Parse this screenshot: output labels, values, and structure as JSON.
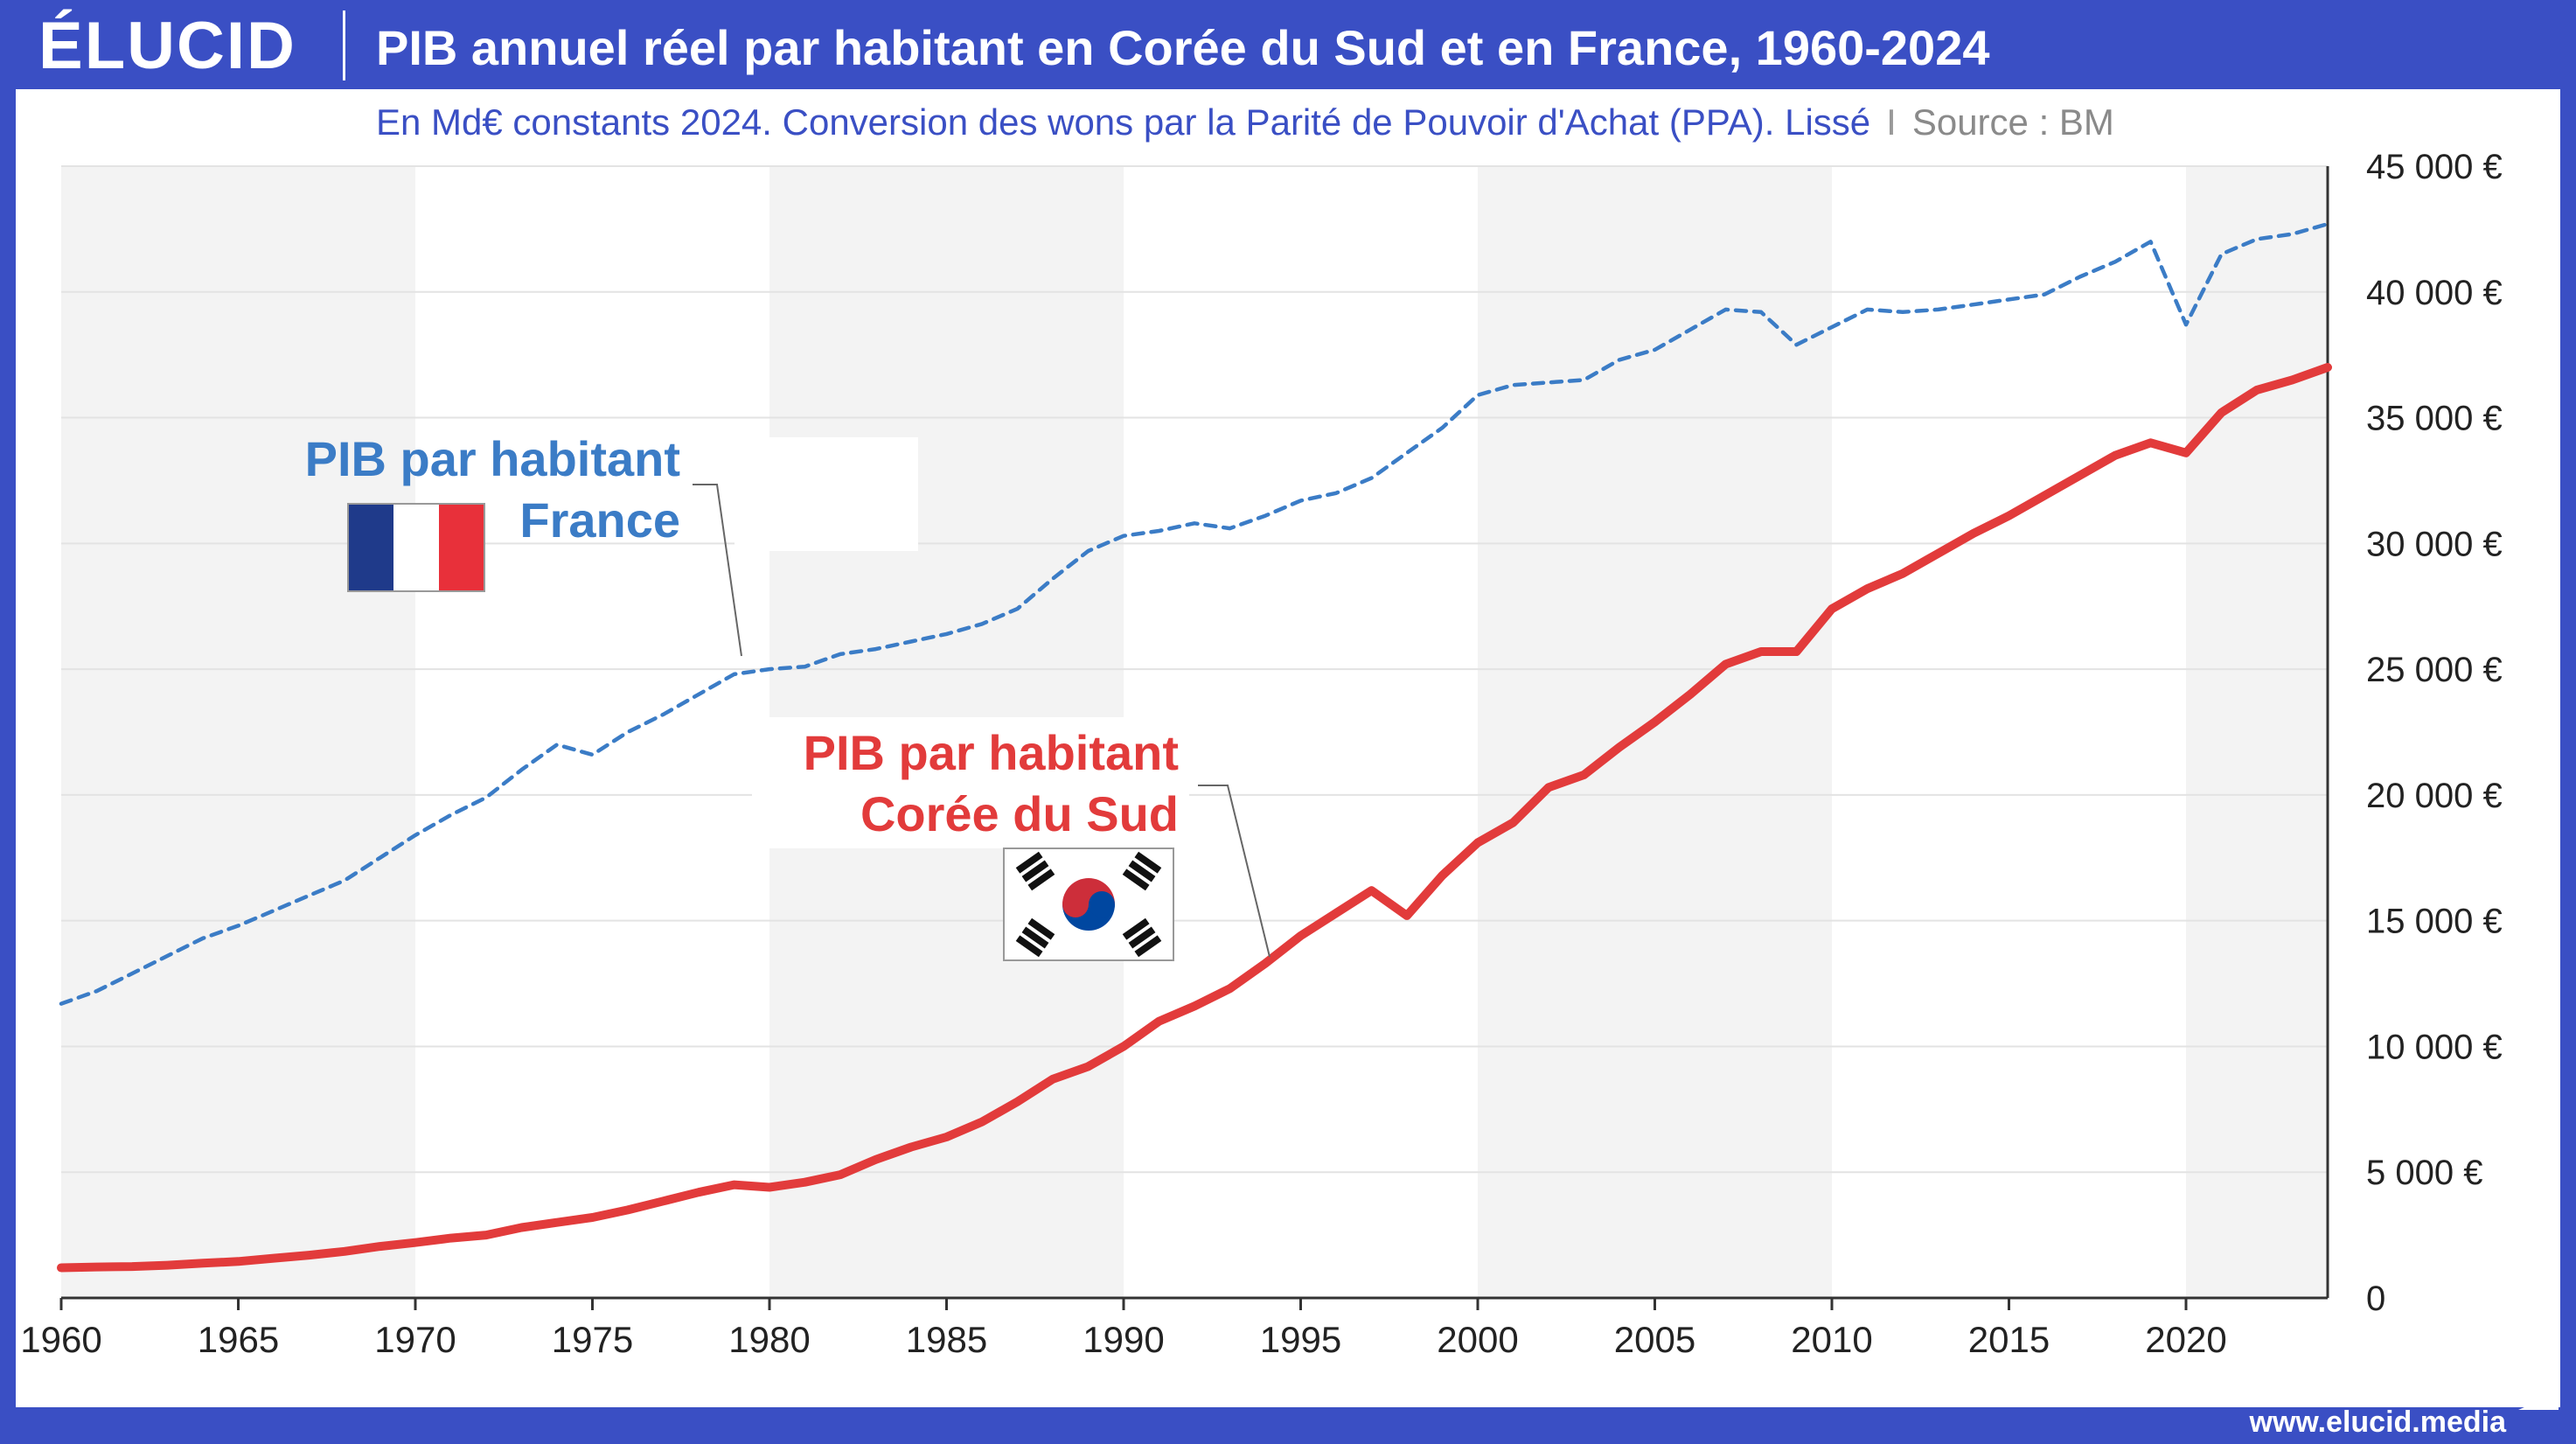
{
  "header": {
    "logo": "ÉLUCID",
    "title": "PIB annuel réel par habitant en Corée du Sud et en France, 1960-2024"
  },
  "subtitle": {
    "text": "En Md€ constants 2024. Conversion des wons par la Parité de Pouvoir d'Achat (PPA). Lissé",
    "separator": "I",
    "source": "Source : BM"
  },
  "footer": {
    "url": "www.elucid.media"
  },
  "colors": {
    "background": "#3a4fc4",
    "france": "#3b7cc6",
    "korea": "#e23b3b",
    "band": "#f3f3f3",
    "grid": "#e3e3e3"
  },
  "annotations": {
    "france": {
      "line1": "PIB par habitant",
      "line2": "France",
      "flag": "flag-france"
    },
    "korea": {
      "line1": "PIB par habitant",
      "line2": "Corée du Sud",
      "flag": "flag-south-korea"
    }
  },
  "chart_data": {
    "type": "line",
    "title": "PIB annuel réel par habitant en Corée du Sud et en France, 1960-2024",
    "xlim": [
      1960,
      2024
    ],
    "ylim": [
      0,
      45000
    ],
    "x_ticks": [
      "1960",
      "1965",
      "1970",
      "1975",
      "1980",
      "1985",
      "1990",
      "1995",
      "2000",
      "2005",
      "2010",
      "2015",
      "2020"
    ],
    "y_ticks": [
      "0",
      "5 000 €",
      "10 000 €",
      "15 000 €",
      "20 000 €",
      "25 000 €",
      "30 000 €",
      "35 000 €",
      "40 000 €",
      "45 000 €"
    ],
    "grid": true,
    "shaded_decades": [
      [
        1960,
        1970
      ],
      [
        1980,
        1990
      ],
      [
        2000,
        2010
      ],
      [
        2020,
        2024
      ]
    ],
    "x": [
      1960,
      1961,
      1962,
      1963,
      1964,
      1965,
      1966,
      1967,
      1968,
      1969,
      1970,
      1971,
      1972,
      1973,
      1974,
      1975,
      1976,
      1977,
      1978,
      1979,
      1980,
      1981,
      1982,
      1983,
      1984,
      1985,
      1986,
      1987,
      1988,
      1989,
      1990,
      1991,
      1992,
      1993,
      1994,
      1995,
      1996,
      1997,
      1998,
      1999,
      2000,
      2001,
      2002,
      2003,
      2004,
      2005,
      2006,
      2007,
      2008,
      2009,
      2010,
      2011,
      2012,
      2013,
      2014,
      2015,
      2016,
      2017,
      2018,
      2019,
      2020,
      2021,
      2022,
      2023,
      2024
    ],
    "series": [
      {
        "name": "PIB par habitant France",
        "style": "dashed",
        "values": [
          11700,
          12200,
          12900,
          13600,
          14300,
          14800,
          15400,
          16000,
          16600,
          17500,
          18400,
          19200,
          19900,
          21000,
          22000,
          21600,
          22500,
          23200,
          24000,
          24800,
          25000,
          25100,
          25600,
          25800,
          26100,
          26400,
          26800,
          27400,
          28600,
          29700,
          30300,
          30500,
          30800,
          30600,
          31100,
          31700,
          32000,
          32600,
          33600,
          34600,
          35900,
          36300,
          36400,
          36500,
          37300,
          37700,
          38500,
          39300,
          39200,
          37900,
          38600,
          39300,
          39200,
          39300,
          39500,
          39700,
          39900,
          40600,
          41200,
          42000,
          38700,
          41500,
          42100,
          42300,
          42700
        ]
      },
      {
        "name": "PIB par habitant Corée du Sud",
        "style": "solid",
        "values": [
          1200,
          1230,
          1250,
          1300,
          1380,
          1450,
          1580,
          1700,
          1850,
          2050,
          2200,
          2380,
          2500,
          2800,
          3000,
          3200,
          3500,
          3850,
          4200,
          4500,
          4400,
          4600,
          4900,
          5500,
          6000,
          6400,
          7000,
          7800,
          8700,
          9200,
          10000,
          11000,
          11600,
          12300,
          13300,
          14400,
          15300,
          16200,
          15200,
          16800,
          18100,
          18900,
          20300,
          20800,
          21900,
          22900,
          24000,
          25200,
          25700,
          25700,
          27400,
          28200,
          28800,
          29600,
          30400,
          31100,
          31900,
          32700,
          33500,
          34000,
          33600,
          35200,
          36100,
          36500,
          37000
        ]
      }
    ]
  }
}
